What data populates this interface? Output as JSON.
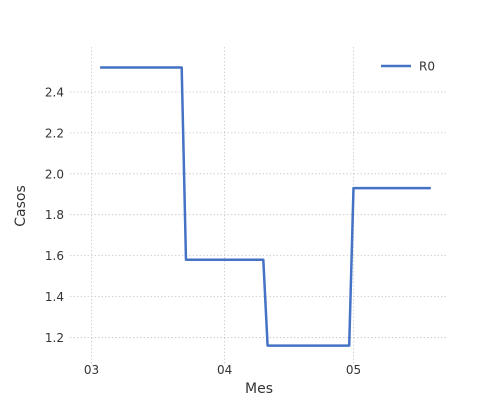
{
  "chart_data": {
    "type": "line",
    "title": "",
    "xlabel": "Mes",
    "ylabel": "Casos",
    "x_tick_labels": [
      "03",
      "04",
      "05"
    ],
    "x_tick_dates": [
      "2020-03-01",
      "2020-04-01",
      "2020-05-01"
    ],
    "xlim": [
      "2020-02-25",
      "2020-05-23"
    ],
    "ylim": [
      1.07,
      2.62
    ],
    "y_ticks": [
      1.2,
      1.4,
      1.6,
      1.8,
      2.0,
      2.2,
      2.4
    ],
    "y_tick_labels": [
      "1.2",
      "1.4",
      "1.6",
      "1.8",
      "2.0",
      "2.2",
      "2.4"
    ],
    "grid": true,
    "legend": {
      "placement": "top-right"
    },
    "series": [
      {
        "name": "R0",
        "color": "#4472c4",
        "points": [
          {
            "x": "2020-03-03",
            "y": 2.52
          },
          {
            "x": "2020-03-22",
            "y": 2.52
          },
          {
            "x": "2020-03-23",
            "y": 1.58
          },
          {
            "x": "2020-04-10",
            "y": 1.58
          },
          {
            "x": "2020-04-11",
            "y": 1.16
          },
          {
            "x": "2020-04-30",
            "y": 1.16
          },
          {
            "x": "2020-05-01",
            "y": 1.93
          },
          {
            "x": "2020-05-19",
            "y": 1.93
          }
        ]
      }
    ]
  }
}
